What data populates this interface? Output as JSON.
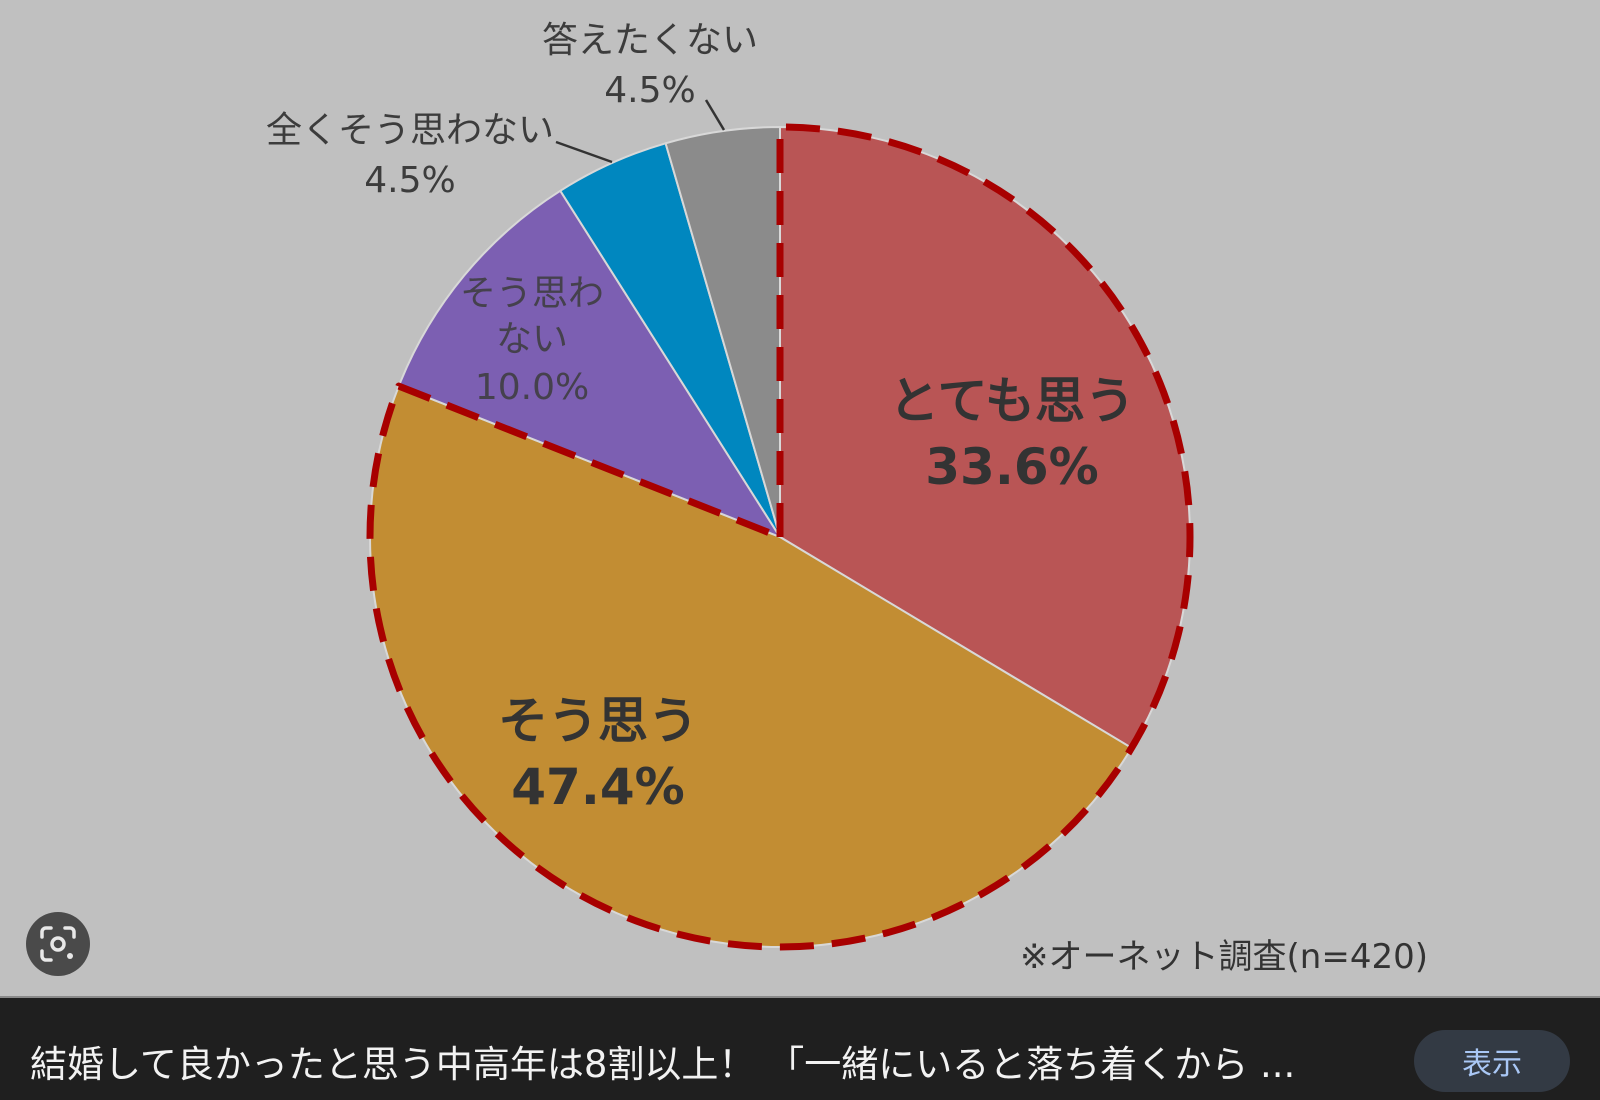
{
  "chart_data": {
    "type": "pie",
    "title": "",
    "slices": [
      {
        "label": "とても思う",
        "value": 33.6,
        "display": "33.6%",
        "color": "#b95555",
        "highlighted": true
      },
      {
        "label": "そう思う",
        "value": 47.4,
        "display": "47.4%",
        "color": "#c28d33",
        "highlighted": true
      },
      {
        "label": "そう思わない",
        "label_lines": [
          "そう思わ",
          "ない"
        ],
        "value": 10.0,
        "display": "10.0%",
        "color": "#7c5fb2",
        "highlighted": false
      },
      {
        "label": "全くそう思わない",
        "value": 4.5,
        "display": "4.5%",
        "color": "#0087bf",
        "highlighted": false
      },
      {
        "label": "答えたくない",
        "value": 4.5,
        "display": "4.5%",
        "color": "#8b8b8b",
        "highlighted": false
      }
    ],
    "start_angle": "12 o'clock",
    "direction": "clockwise",
    "highlight_border_color": "#a80000",
    "note": "※オーネット調査(n=420)"
  },
  "caption": {
    "text": "結婚して良かったと思う中高年は8割以上！ 「一緒にいると落ち着くから ...",
    "show_button": "表示"
  },
  "icons": {
    "lens": "visual-search-icon"
  }
}
